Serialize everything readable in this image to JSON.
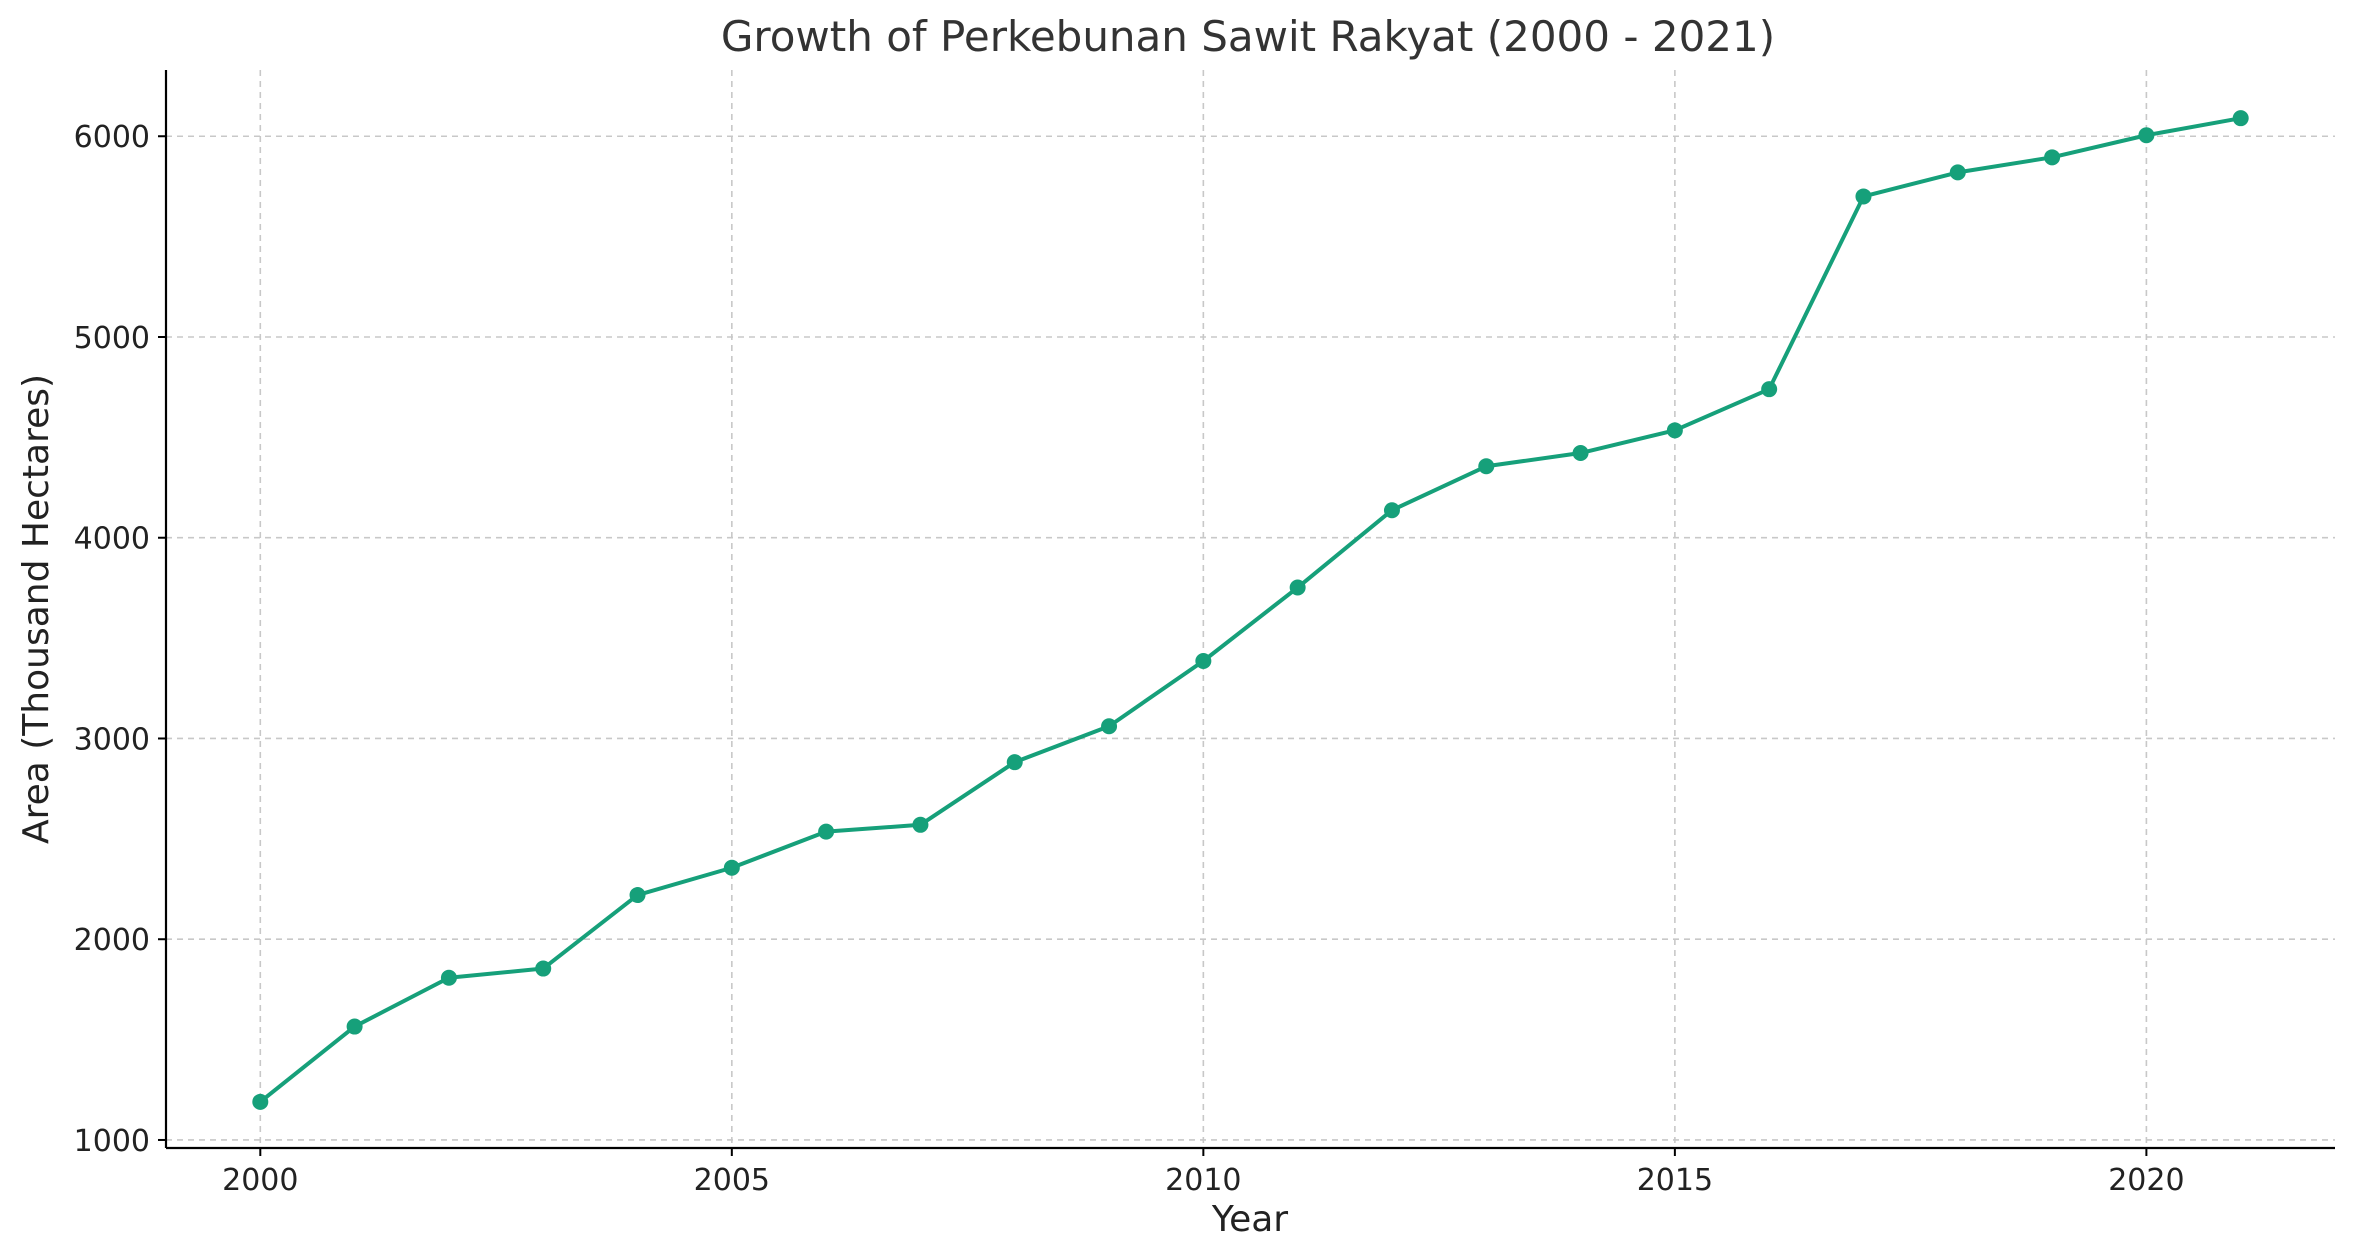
{
  "chart_data": {
    "type": "line",
    "title": "Growth of Perkebunan Sawit Rakyat (2000 - 2021)",
    "xlabel": "Year",
    "ylabel": "Area (Thousand Hectares)",
    "x": [
      2000,
      2001,
      2002,
      2003,
      2004,
      2005,
      2006,
      2007,
      2008,
      2009,
      2010,
      2011,
      2012,
      2013,
      2014,
      2015,
      2016,
      2017,
      2018,
      2019,
      2020,
      2021
    ],
    "series": [
      {
        "values": [
          1190,
          1565,
          1808,
          1854,
          2220,
          2356,
          2536,
          2570,
          2882,
          3061,
          3386,
          3752,
          4137,
          4356,
          4422,
          4535,
          4740,
          5700,
          5820,
          5895,
          6005,
          6090
        ]
      }
    ],
    "xlim": [
      1999,
      2022
    ],
    "ylim": [
      960,
      6330
    ],
    "xticks": [
      2000,
      2005,
      2010,
      2015,
      2020
    ],
    "yticks": [
      1000,
      2000,
      3000,
      4000,
      5000,
      6000
    ],
    "xtick_labels": [
      "2000",
      "2005",
      "2010",
      "2015",
      "2020"
    ],
    "ytick_labels": [
      "1000",
      "2000",
      "3000",
      "4000",
      "5000",
      "6000"
    ],
    "grid": true,
    "marker": "circle",
    "colors": {
      "series": "#16a07a",
      "grid": "#c8c8c8",
      "axis": "#000000",
      "title": "#333333"
    }
  }
}
